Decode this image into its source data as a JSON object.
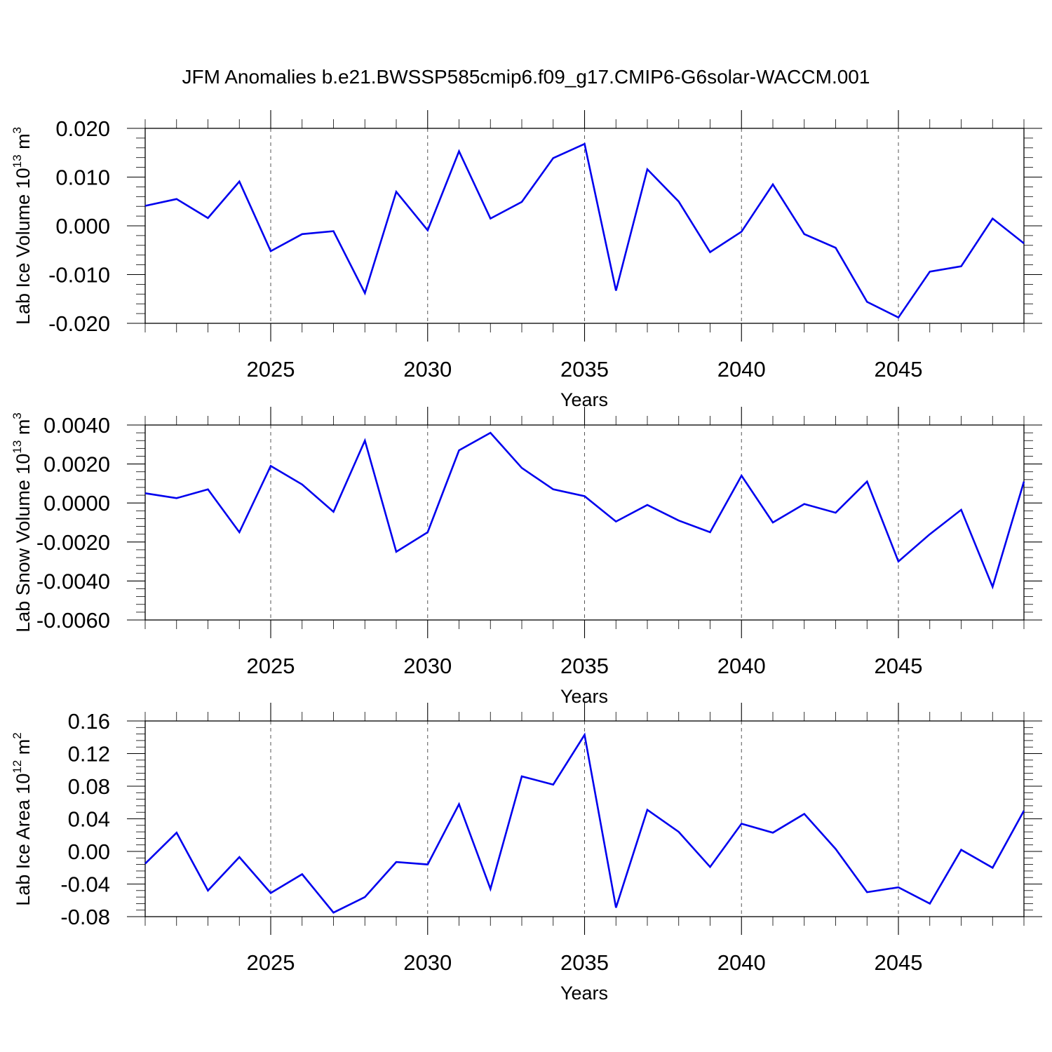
{
  "chart_data": [
    {
      "type": "line",
      "title": "JFM Anomalies b.e21.BWSSP585cmip6.f09_g17.CMIP6-G6solar-WACCM.001",
      "xlabel": "Years",
      "ylabel": "Lab Ice Volume 10",
      "ylabel_exp": "13",
      "ylabel_unit": " m",
      "ylabel_unit_exp": "3",
      "xlim": [
        2021,
        2049
      ],
      "ylim": [
        -0.02,
        0.02
      ],
      "x_ticks": [
        2025,
        2030,
        2035,
        2040,
        2045
      ],
      "x_tick_labels": [
        "2025",
        "2030",
        "2035",
        "2040",
        "2045"
      ],
      "y_ticks": [
        0.02,
        0.01,
        0.0,
        -0.01,
        -0.02
      ],
      "y_tick_labels": [
        "0.020",
        "0.010",
        "0.000",
        "-0.010",
        "-0.020"
      ],
      "grid": "vertical dashed at major x ticks",
      "x": [
        2021,
        2022,
        2023,
        2024,
        2025,
        2026,
        2027,
        2028,
        2029,
        2030,
        2031,
        2032,
        2033,
        2034,
        2035,
        2036,
        2037,
        2038,
        2039,
        2040,
        2041,
        2042,
        2043,
        2044,
        2045,
        2046,
        2047,
        2048,
        2049
      ],
      "series": [
        {
          "name": "Lab Ice Volume",
          "color": "#0000ee",
          "values": [
            0.0041,
            0.0055,
            0.0016,
            0.0091,
            -0.0052,
            -0.0017,
            -0.0011,
            -0.0138,
            0.007,
            -0.0009,
            0.0153,
            0.0015,
            0.0049,
            0.0139,
            0.0168,
            -0.0133,
            0.0116,
            0.005,
            -0.0054,
            -0.0012,
            0.0085,
            -0.0017,
            -0.0045,
            -0.0156,
            -0.0188,
            -0.0094,
            -0.0083,
            0.0015,
            -0.0036
          ]
        }
      ]
    },
    {
      "type": "line",
      "xlabel": "Years",
      "ylabel": "Lab Snow Volume 10",
      "ylabel_exp": "13",
      "ylabel_unit": " m",
      "ylabel_unit_exp": "3",
      "xlim": [
        2021,
        2049
      ],
      "ylim": [
        -0.006,
        0.004
      ],
      "x_ticks": [
        2025,
        2030,
        2035,
        2040,
        2045
      ],
      "x_tick_labels": [
        "2025",
        "2030",
        "2035",
        "2040",
        "2045"
      ],
      "y_ticks": [
        0.004,
        0.002,
        0.0,
        -0.002,
        -0.004,
        -0.006
      ],
      "y_tick_labels": [
        "0.0040",
        "0.0020",
        "0.0000",
        "-0.0020",
        "-0.0040",
        "-0.0060"
      ],
      "grid": "vertical dashed at major x ticks",
      "x": [
        2021,
        2022,
        2023,
        2024,
        2025,
        2026,
        2027,
        2028,
        2029,
        2030,
        2031,
        2032,
        2033,
        2034,
        2035,
        2036,
        2037,
        2038,
        2039,
        2040,
        2041,
        2042,
        2043,
        2044,
        2045,
        2046,
        2047,
        2048,
        2049
      ],
      "series": [
        {
          "name": "Lab Snow Volume",
          "color": "#0000ee",
          "values": [
            0.0005,
            0.00025,
            0.0007,
            -0.0015,
            0.0019,
            0.00095,
            -0.00045,
            0.0032,
            -0.0025,
            -0.0015,
            0.0027,
            0.0036,
            0.0018,
            0.0007,
            0.00035,
            -0.00095,
            -0.0001,
            -0.0009,
            -0.0015,
            0.0014,
            -0.001,
            -5e-05,
            -0.0005,
            0.0011,
            -0.003,
            -0.0016,
            -0.00035,
            -0.0043,
            0.0011
          ]
        }
      ]
    },
    {
      "type": "line",
      "xlabel": "Years",
      "ylabel": "Lab Ice Area 10",
      "ylabel_exp": "12",
      "ylabel_unit": " m",
      "ylabel_unit_exp": "2",
      "xlim": [
        2021,
        2049
      ],
      "ylim": [
        -0.08,
        0.16
      ],
      "x_ticks": [
        2025,
        2030,
        2035,
        2040,
        2045
      ],
      "x_tick_labels": [
        "2025",
        "2030",
        "2035",
        "2040",
        "2045"
      ],
      "y_ticks": [
        0.16,
        0.12,
        0.08,
        0.04,
        0.0,
        -0.04,
        -0.08
      ],
      "y_tick_labels": [
        "0.16",
        "0.12",
        "0.08",
        "0.04",
        "0.00",
        "-0.04",
        "-0.08"
      ],
      "grid": "vertical dashed at major x ticks",
      "x": [
        2021,
        2022,
        2023,
        2024,
        2025,
        2026,
        2027,
        2028,
        2029,
        2030,
        2031,
        2032,
        2033,
        2034,
        2035,
        2036,
        2037,
        2038,
        2039,
        2040,
        2041,
        2042,
        2043,
        2044,
        2045,
        2046,
        2047,
        2048,
        2049
      ],
      "series": [
        {
          "name": "Lab Ice Area",
          "color": "#0000ee",
          "values": [
            -0.015,
            0.023,
            -0.048,
            -0.007,
            -0.051,
            -0.028,
            -0.075,
            -0.056,
            -0.013,
            -0.016,
            0.058,
            -0.046,
            0.092,
            0.082,
            0.143,
            -0.069,
            0.051,
            0.024,
            -0.019,
            0.034,
            0.023,
            0.046,
            0.003,
            -0.05,
            -0.044,
            -0.064,
            0.002,
            -0.02,
            0.05
          ]
        }
      ]
    }
  ]
}
